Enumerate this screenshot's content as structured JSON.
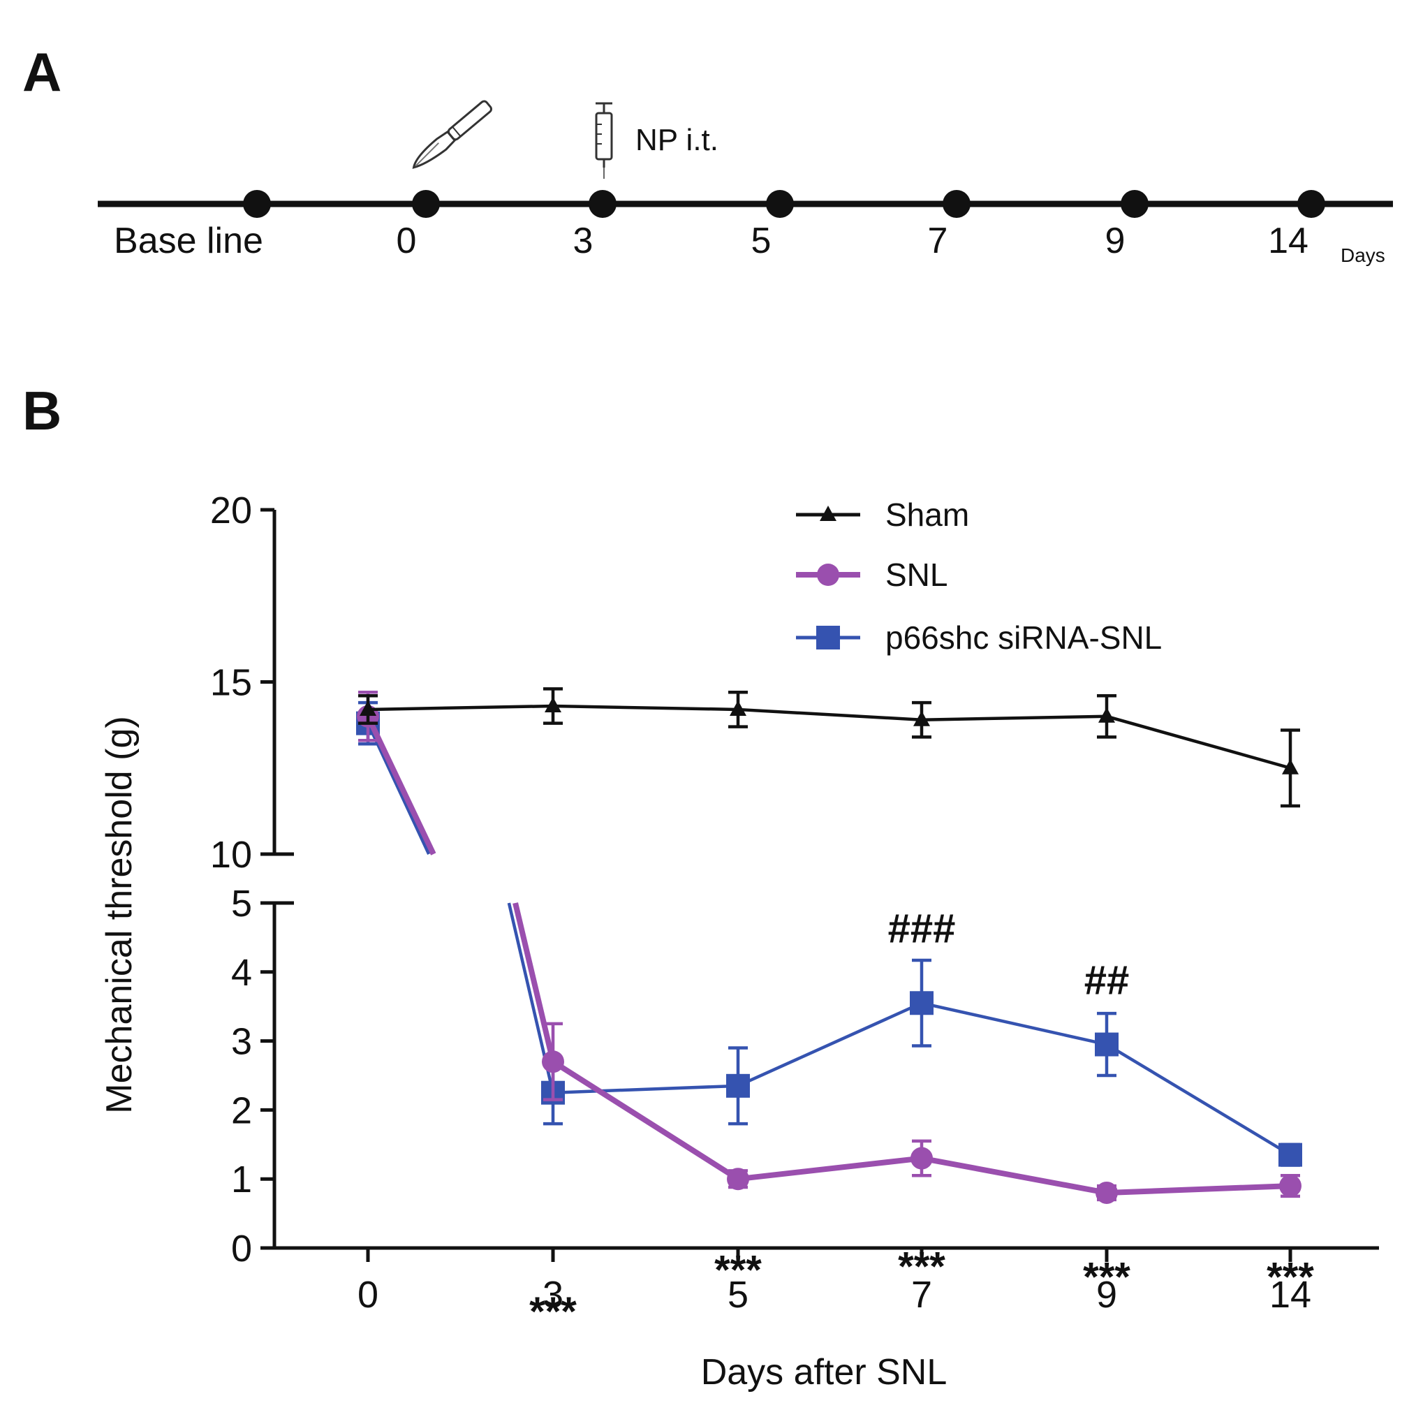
{
  "panel_a": {
    "label": "A",
    "timeline_labels": [
      "Base line",
      "0",
      "3",
      "5",
      "7",
      "9",
      "14"
    ],
    "unit_label": "Days",
    "injection_label": "NP i.t.",
    "surgery_icon": "scalpel-icon",
    "injection_icon": "syringe-icon"
  },
  "panel_b": {
    "label": "B"
  },
  "chart_data": {
    "type": "line",
    "title": "",
    "xlabel": "Days after SNL",
    "ylabel": "Mechanical threshold (g)",
    "categories": [
      "0",
      "3",
      "5",
      "7",
      "9",
      "14"
    ],
    "y_axis_broken": true,
    "ylim_lower": [
      0,
      5
    ],
    "ylim_upper": [
      10,
      20
    ],
    "yticks_lower": [
      "0",
      "1",
      "2",
      "3",
      "4",
      "5"
    ],
    "yticks_upper": [
      "10",
      "15",
      "20"
    ],
    "legend_position": "top-right",
    "series": [
      {
        "name": "Sham",
        "marker": "triangle",
        "color": "#111111",
        "values": [
          14.2,
          14.3,
          14.2,
          13.9,
          14.0,
          12.5
        ],
        "errors": [
          0.4,
          0.5,
          0.5,
          0.5,
          0.6,
          1.1
        ]
      },
      {
        "name": "SNL",
        "marker": "circle",
        "color": "#9a4fae",
        "values": [
          14.0,
          2.7,
          1.0,
          1.3,
          0.8,
          0.9
        ],
        "errors": [
          0.7,
          0.55,
          0.12,
          0.25,
          0.1,
          0.15
        ]
      },
      {
        "name": "p66shc siRNA-SNL",
        "marker": "square",
        "color": "#3553b0",
        "values": [
          13.8,
          2.25,
          2.35,
          3.55,
          2.95,
          1.35
        ],
        "errors": [
          0.6,
          0.45,
          0.55,
          0.62,
          0.45,
          0.15
        ]
      }
    ],
    "annotations": [
      {
        "text": "***",
        "x": "3",
        "y": -0.9
      },
      {
        "text": "***",
        "x": "5",
        "y": -0.3
      },
      {
        "text": "***",
        "x": "7",
        "y": -0.25
      },
      {
        "text": "***",
        "x": "9",
        "y": -0.4
      },
      {
        "text": "***",
        "x": "14",
        "y": -0.4
      },
      {
        "text": "###",
        "x": "7",
        "y": 4.65
      },
      {
        "text": "##",
        "x": "9",
        "y": 3.9
      }
    ]
  }
}
